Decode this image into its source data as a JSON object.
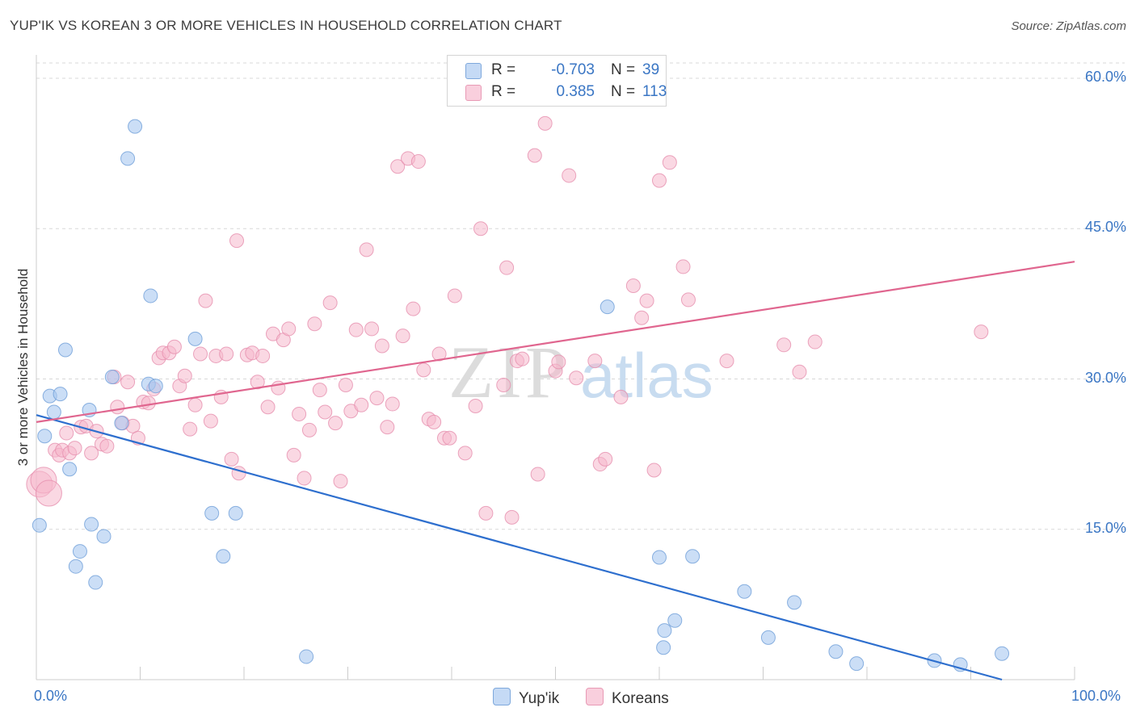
{
  "title": "YUP'IK VS KOREAN 3 OR MORE VEHICLES IN HOUSEHOLD CORRELATION CHART",
  "source": "Source: ZipAtlas.com",
  "watermark": {
    "zip": "ZIP",
    "atlas": "atlas"
  },
  "legend_top": [
    {
      "r_label": "R =",
      "r_value": "-0.703",
      "n_label": "N =",
      "n_value": "39",
      "color": "#a8c8f0"
    },
    {
      "r_label": "R =",
      "r_value": "0.385",
      "n_label": "N =",
      "n_value": "113",
      "color": "#f5b8cc"
    }
  ],
  "legend_bottom": [
    {
      "label": "Yup'ik",
      "color": "#a8c8f0"
    },
    {
      "label": "Koreans",
      "color": "#f5b8cc"
    }
  ],
  "chart_data": {
    "type": "scatter",
    "xlabel": "",
    "ylabel": "3 or more Vehicles in Household",
    "xlim": [
      0,
      100
    ],
    "ylim": [
      0,
      60
    ],
    "x_tick_labels": [
      "0.0%",
      "100.0%"
    ],
    "y_ticks": [
      15,
      30,
      45,
      60
    ],
    "y_tick_labels": [
      "15.0%",
      "30.0%",
      "45.0%",
      "60.0%"
    ],
    "grid": true,
    "series": [
      {
        "name": "Yup'ik",
        "color": "#a8c8f0",
        "stroke": "#6f9fd8",
        "trend_color": "#2e6fce",
        "trend": {
          "x": [
            0,
            93
          ],
          "y": [
            26.4,
            0
          ]
        },
        "points": [
          [
            0.3,
            15.4
          ],
          [
            0.8,
            24.3
          ],
          [
            1.3,
            28.3
          ],
          [
            1.7,
            26.7
          ],
          [
            2.3,
            28.5
          ],
          [
            2.8,
            32.9
          ],
          [
            3.2,
            21.0
          ],
          [
            3.8,
            11.3
          ],
          [
            4.2,
            12.8
          ],
          [
            5.1,
            26.9
          ],
          [
            5.3,
            15.5
          ],
          [
            5.7,
            9.7
          ],
          [
            6.5,
            14.3
          ],
          [
            7.3,
            30.2
          ],
          [
            8.2,
            25.6
          ],
          [
            8.8,
            52.0
          ],
          [
            9.5,
            55.2
          ],
          [
            10.8,
            29.5
          ],
          [
            11.0,
            38.3
          ],
          [
            11.5,
            29.3
          ],
          [
            15.3,
            34.0
          ],
          [
            16.9,
            16.6
          ],
          [
            18.0,
            12.3
          ],
          [
            19.2,
            16.6
          ],
          [
            26.0,
            2.3
          ],
          [
            55.0,
            37.2
          ],
          [
            60.0,
            12.2
          ],
          [
            60.4,
            3.2
          ],
          [
            60.5,
            4.9
          ],
          [
            61.5,
            5.9
          ],
          [
            63.2,
            12.3
          ],
          [
            68.2,
            8.8
          ],
          [
            70.5,
            4.2
          ],
          [
            73.0,
            7.7
          ],
          [
            77.0,
            2.8
          ],
          [
            79.0,
            1.6
          ],
          [
            86.5,
            1.9
          ],
          [
            89.0,
            1.5
          ],
          [
            93.0,
            2.6
          ]
        ]
      },
      {
        "name": "Koreans",
        "color": "#f5b8cc",
        "stroke": "#e68fae",
        "trend_color": "#e0668f",
        "trend": {
          "x": [
            0,
            100
          ],
          "y": [
            25.7,
            41.7
          ]
        },
        "points": [
          [
            0.3,
            19.5
          ],
          [
            0.7,
            19.9
          ],
          [
            1.2,
            18.6
          ],
          [
            1.8,
            22.9
          ],
          [
            2.2,
            22.4
          ],
          [
            2.5,
            22.9
          ],
          [
            2.9,
            24.6
          ],
          [
            3.2,
            22.6
          ],
          [
            3.7,
            23.1
          ],
          [
            4.3,
            25.2
          ],
          [
            4.8,
            25.3
          ],
          [
            5.3,
            22.6
          ],
          [
            5.8,
            24.8
          ],
          [
            6.3,
            23.5
          ],
          [
            6.8,
            23.3
          ],
          [
            7.5,
            30.2
          ],
          [
            7.8,
            27.2
          ],
          [
            8.3,
            25.6
          ],
          [
            8.8,
            29.7
          ],
          [
            9.3,
            25.3
          ],
          [
            9.8,
            24.1
          ],
          [
            10.3,
            27.7
          ],
          [
            10.8,
            27.6
          ],
          [
            11.3,
            29.0
          ],
          [
            11.8,
            32.1
          ],
          [
            12.2,
            32.6
          ],
          [
            12.8,
            32.6
          ],
          [
            13.3,
            33.2
          ],
          [
            13.8,
            29.3
          ],
          [
            14.3,
            30.3
          ],
          [
            14.8,
            25.0
          ],
          [
            15.3,
            27.4
          ],
          [
            15.8,
            32.5
          ],
          [
            16.3,
            37.8
          ],
          [
            16.8,
            25.8
          ],
          [
            17.3,
            32.3
          ],
          [
            17.8,
            28.2
          ],
          [
            18.3,
            32.5
          ],
          [
            18.8,
            22.0
          ],
          [
            19.3,
            43.8
          ],
          [
            19.5,
            20.6
          ],
          [
            20.3,
            32.4
          ],
          [
            20.8,
            32.6
          ],
          [
            21.3,
            29.7
          ],
          [
            21.8,
            32.3
          ],
          [
            22.3,
            27.2
          ],
          [
            22.8,
            34.5
          ],
          [
            23.3,
            29.1
          ],
          [
            23.8,
            33.9
          ],
          [
            24.3,
            35.0
          ],
          [
            24.8,
            22.4
          ],
          [
            25.3,
            26.5
          ],
          [
            25.8,
            20.1
          ],
          [
            26.3,
            24.9
          ],
          [
            26.8,
            35.5
          ],
          [
            27.3,
            28.9
          ],
          [
            27.8,
            26.7
          ],
          [
            28.3,
            37.6
          ],
          [
            28.8,
            25.6
          ],
          [
            29.3,
            19.8
          ],
          [
            29.8,
            29.4
          ],
          [
            30.3,
            26.8
          ],
          [
            30.8,
            34.9
          ],
          [
            31.3,
            27.4
          ],
          [
            31.8,
            42.9
          ],
          [
            32.3,
            35.0
          ],
          [
            32.8,
            28.1
          ],
          [
            33.3,
            33.3
          ],
          [
            33.8,
            25.2
          ],
          [
            34.3,
            27.5
          ],
          [
            34.8,
            51.2
          ],
          [
            35.3,
            34.3
          ],
          [
            35.8,
            52.0
          ],
          [
            36.3,
            37.0
          ],
          [
            36.8,
            51.7
          ],
          [
            37.3,
            30.9
          ],
          [
            37.8,
            26.0
          ],
          [
            38.3,
            25.7
          ],
          [
            38.8,
            32.5
          ],
          [
            39.3,
            24.1
          ],
          [
            39.8,
            24.1
          ],
          [
            40.3,
            38.3
          ],
          [
            41.3,
            22.6
          ],
          [
            42.3,
            27.3
          ],
          [
            42.8,
            45.0
          ],
          [
            43.3,
            16.6
          ],
          [
            45.0,
            29.4
          ],
          [
            45.3,
            41.1
          ],
          [
            45.8,
            16.2
          ],
          [
            46.3,
            31.8
          ],
          [
            46.8,
            32.0
          ],
          [
            48.0,
            52.3
          ],
          [
            48.3,
            20.5
          ],
          [
            49.0,
            55.5
          ],
          [
            50.0,
            30.8
          ],
          [
            50.3,
            31.7
          ],
          [
            51.3,
            50.3
          ],
          [
            52.0,
            30.1
          ],
          [
            53.8,
            31.8
          ],
          [
            54.3,
            21.5
          ],
          [
            54.8,
            22.0
          ],
          [
            56.3,
            28.2
          ],
          [
            57.5,
            39.3
          ],
          [
            58.3,
            36.1
          ],
          [
            58.8,
            37.8
          ],
          [
            59.5,
            20.9
          ],
          [
            60.0,
            49.8
          ],
          [
            61.0,
            51.6
          ],
          [
            62.3,
            41.2
          ],
          [
            62.8,
            37.9
          ],
          [
            66.5,
            31.8
          ],
          [
            72.0,
            33.4
          ],
          [
            73.5,
            30.7
          ],
          [
            75.0,
            33.7
          ],
          [
            91.0,
            34.7
          ]
        ]
      }
    ]
  }
}
